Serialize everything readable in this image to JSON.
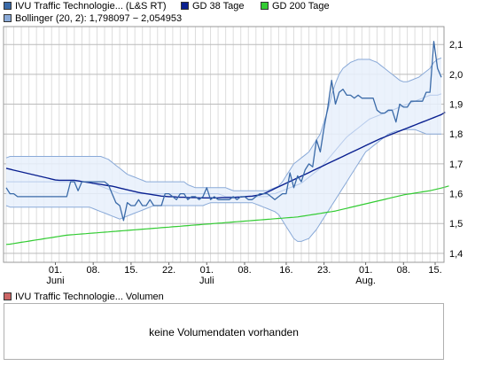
{
  "legend": {
    "price_label": "IVU Traffic Technologie... (L&S RT)",
    "gd38_label": "GD 38 Tage",
    "gd200_label": "GD 200 Tage",
    "bollinger_label": "Bollinger (20, 2): 1,798097 − 2,054953",
    "volume_label": "IVU Traffic Technologie... Volumen"
  },
  "volume": {
    "message": "keine Volumendaten vorhanden"
  },
  "colors": {
    "price": "#3a6aa8",
    "gd38": "#0a2090",
    "gd200": "#33cc33",
    "bollinger_fill": "#e8f0fb",
    "bollinger_line": "#8aaad8",
    "bollinger_mid": "#b8ccec",
    "volume_swatch": "#cc6666",
    "grid": "#cccccc"
  },
  "chart_data": {
    "type": "line",
    "x_tick_labels": [
      "01.",
      "08.",
      "15.",
      "22.",
      "01.",
      "08.",
      "16.",
      "23.",
      "01.",
      "08.",
      "15."
    ],
    "month_labels": [
      "Juni",
      "Juli",
      "Aug."
    ],
    "y_tick_labels": [
      "1,4",
      "1,5",
      "1,6",
      "1,7",
      "1,8",
      "1,9",
      "2,0",
      "2,1"
    ],
    "ylim": [
      1.37,
      2.16
    ],
    "grid": true,
    "legend_position": "top",
    "series": [
      {
        "name": "IVU Traffic Technologie... (L&S RT)",
        "values": [
          1.62,
          1.6,
          1.6,
          1.59,
          1.59,
          1.59,
          1.59,
          1.59,
          1.59,
          1.59,
          1.59,
          1.59,
          1.59,
          1.59,
          1.59,
          1.59,
          1.59,
          1.64,
          1.64,
          1.61,
          1.64,
          1.64,
          1.64,
          1.64,
          1.64,
          1.64,
          1.64,
          1.63,
          1.6,
          1.57,
          1.56,
          1.51,
          1.57,
          1.56,
          1.56,
          1.58,
          1.56,
          1.56,
          1.58,
          1.56,
          1.56,
          1.56,
          1.6,
          1.6,
          1.59,
          1.58,
          1.6,
          1.6,
          1.58,
          1.59,
          1.59,
          1.58,
          1.59,
          1.62,
          1.58,
          1.59,
          1.58,
          1.58,
          1.58,
          1.58,
          1.59,
          1.58,
          1.59,
          1.59,
          1.58,
          1.58,
          1.59,
          1.6,
          1.6,
          1.6,
          1.59,
          1.58,
          1.59,
          1.6,
          1.6,
          1.67,
          1.62,
          1.66,
          1.64,
          1.68,
          1.7,
          1.69,
          1.78,
          1.74,
          1.82,
          1.89,
          1.98,
          1.9,
          1.94,
          1.95,
          1.93,
          1.93,
          1.92,
          1.93,
          1.92,
          1.92,
          1.92,
          1.92,
          1.88,
          1.87,
          1.87,
          1.88,
          1.88,
          1.84,
          1.9,
          1.89,
          1.89,
          1.91,
          1.91,
          1.91,
          1.91,
          1.94,
          1.94,
          2.11,
          2.02,
          1.99
        ]
      },
      {
        "name": "GD 38 Tage",
        "values": [
          1.685,
          1.682,
          1.679,
          1.676,
          1.673,
          1.67,
          1.667,
          1.664,
          1.661,
          1.658,
          1.655,
          1.652,
          1.649,
          1.646,
          1.645,
          1.645,
          1.645,
          1.645,
          1.645,
          1.643,
          1.641,
          1.639,
          1.637,
          1.635,
          1.633,
          1.631,
          1.629,
          1.627,
          1.625,
          1.622,
          1.619,
          1.616,
          1.613,
          1.61,
          1.607,
          1.604,
          1.602,
          1.6,
          1.598,
          1.596,
          1.594,
          1.592,
          1.591,
          1.59,
          1.59,
          1.589,
          1.588,
          1.588,
          1.587,
          1.587,
          1.587,
          1.586,
          1.586,
          1.586,
          1.586,
          1.586,
          1.586,
          1.587,
          1.587,
          1.587,
          1.587,
          1.588,
          1.589,
          1.59,
          1.591,
          1.592,
          1.594,
          1.596,
          1.6,
          1.605,
          1.611,
          1.617,
          1.623,
          1.629,
          1.635,
          1.641,
          1.647,
          1.653,
          1.659,
          1.665,
          1.671,
          1.677,
          1.683,
          1.689,
          1.695,
          1.701,
          1.707,
          1.713,
          1.719,
          1.725,
          1.731,
          1.737,
          1.743,
          1.749,
          1.755,
          1.761,
          1.767,
          1.773,
          1.779,
          1.785,
          1.79,
          1.795,
          1.8,
          1.805,
          1.81,
          1.815,
          1.82,
          1.825,
          1.83,
          1.835,
          1.84,
          1.845,
          1.85,
          1.855,
          1.86,
          1.865,
          1.873
        ]
      },
      {
        "name": "GD 200 Tage",
        "values": [
          1.43,
          1.431,
          1.433,
          1.435,
          1.437,
          1.439,
          1.441,
          1.443,
          1.445,
          1.447,
          1.449,
          1.451,
          1.453,
          1.455,
          1.457,
          1.459,
          1.461,
          1.462,
          1.463,
          1.464,
          1.465,
          1.466,
          1.467,
          1.468,
          1.469,
          1.47,
          1.471,
          1.472,
          1.473,
          1.474,
          1.475,
          1.476,
          1.477,
          1.478,
          1.479,
          1.48,
          1.481,
          1.482,
          1.483,
          1.484,
          1.485,
          1.486,
          1.487,
          1.488,
          1.489,
          1.49,
          1.491,
          1.492,
          1.493,
          1.494,
          1.495,
          1.496,
          1.497,
          1.498,
          1.499,
          1.5,
          1.501,
          1.502,
          1.503,
          1.504,
          1.505,
          1.506,
          1.507,
          1.508,
          1.509,
          1.51,
          1.511,
          1.512,
          1.513,
          1.514,
          1.515,
          1.516,
          1.517,
          1.518,
          1.519,
          1.52,
          1.521,
          1.522,
          1.524,
          1.526,
          1.528,
          1.53,
          1.532,
          1.534,
          1.536,
          1.538,
          1.54,
          1.542,
          1.545,
          1.548,
          1.551,
          1.554,
          1.557,
          1.56,
          1.563,
          1.566,
          1.569,
          1.572,
          1.575,
          1.578,
          1.581,
          1.584,
          1.587,
          1.59,
          1.593,
          1.596,
          1.598,
          1.6,
          1.602,
          1.604,
          1.606,
          1.608,
          1.61,
          1.613,
          1.616,
          1.619,
          1.622,
          1.626
        ]
      },
      {
        "name": "Bollinger (20, 2)",
        "upper": [
          1.72,
          1.725,
          1.725,
          1.725,
          1.725,
          1.725,
          1.725,
          1.725,
          1.725,
          1.725,
          1.725,
          1.725,
          1.725,
          1.725,
          1.725,
          1.725,
          1.725,
          1.725,
          1.725,
          1.725,
          1.725,
          1.725,
          1.725,
          1.725,
          1.725,
          1.725,
          1.72,
          1.715,
          1.705,
          1.695,
          1.685,
          1.675,
          1.665,
          1.66,
          1.655,
          1.65,
          1.645,
          1.64,
          1.64,
          1.64,
          1.64,
          1.64,
          1.64,
          1.64,
          1.64,
          1.64,
          1.64,
          1.64,
          1.63,
          1.625,
          1.62,
          1.62,
          1.62,
          1.62,
          1.62,
          1.62,
          1.62,
          1.62,
          1.62,
          1.615,
          1.61,
          1.61,
          1.61,
          1.61,
          1.61,
          1.61,
          1.61,
          1.61,
          1.61,
          1.61,
          1.615,
          1.62,
          1.625,
          1.64,
          1.66,
          1.68,
          1.7,
          1.71,
          1.72,
          1.73,
          1.74,
          1.76,
          1.78,
          1.8,
          1.84,
          1.88,
          1.93,
          1.97,
          2.0,
          2.02,
          2.03,
          2.04,
          2.045,
          2.05,
          2.05,
          2.05,
          2.05,
          2.045,
          2.04,
          2.03,
          2.02,
          2.01,
          2.0,
          1.99,
          1.98,
          1.975,
          1.975,
          1.98,
          1.985,
          1.99,
          2.0,
          2.01,
          2.02,
          2.04,
          2.05,
          2.055
        ],
        "middle": [
          1.64,
          1.64,
          1.64,
          1.64,
          1.64,
          1.64,
          1.64,
          1.64,
          1.64,
          1.64,
          1.64,
          1.64,
          1.64,
          1.64,
          1.64,
          1.64,
          1.64,
          1.64,
          1.64,
          1.64,
          1.64,
          1.64,
          1.64,
          1.635,
          1.63,
          1.625,
          1.62,
          1.615,
          1.61,
          1.605,
          1.6,
          1.6,
          1.6,
          1.6,
          1.6,
          1.6,
          1.6,
          1.6,
          1.6,
          1.6,
          1.6,
          1.6,
          1.6,
          1.6,
          1.6,
          1.6,
          1.6,
          1.6,
          1.6,
          1.6,
          1.6,
          1.6,
          1.6,
          1.6,
          1.6,
          1.6,
          1.6,
          1.595,
          1.59,
          1.59,
          1.59,
          1.59,
          1.59,
          1.59,
          1.59,
          1.59,
          1.59,
          1.59,
          1.59,
          1.59,
          1.6,
          1.6,
          1.605,
          1.61,
          1.615,
          1.62,
          1.625,
          1.63,
          1.635,
          1.645,
          1.655,
          1.665,
          1.675,
          1.685,
          1.7,
          1.715,
          1.73,
          1.745,
          1.76,
          1.775,
          1.79,
          1.8,
          1.81,
          1.82,
          1.83,
          1.84,
          1.85,
          1.855,
          1.86,
          1.865,
          1.87,
          1.875,
          1.88,
          1.885,
          1.89,
          1.895,
          1.9,
          1.905,
          1.91,
          1.915,
          1.92,
          1.925,
          1.93,
          1.93,
          1.93,
          1.935
        ],
        "lower": [
          1.56,
          1.555,
          1.555,
          1.555,
          1.555,
          1.555,
          1.555,
          1.555,
          1.555,
          1.555,
          1.555,
          1.555,
          1.555,
          1.555,
          1.555,
          1.555,
          1.555,
          1.555,
          1.555,
          1.555,
          1.555,
          1.555,
          1.555,
          1.55,
          1.545,
          1.54,
          1.535,
          1.53,
          1.525,
          1.52,
          1.515,
          1.52,
          1.525,
          1.53,
          1.535,
          1.54,
          1.545,
          1.55,
          1.555,
          1.56,
          1.56,
          1.56,
          1.56,
          1.56,
          1.56,
          1.56,
          1.56,
          1.56,
          1.56,
          1.56,
          1.56,
          1.56,
          1.56,
          1.565,
          1.57,
          1.57,
          1.57,
          1.57,
          1.57,
          1.57,
          1.57,
          1.57,
          1.57,
          1.57,
          1.57,
          1.57,
          1.565,
          1.56,
          1.555,
          1.55,
          1.545,
          1.54,
          1.53,
          1.51,
          1.49,
          1.47,
          1.45,
          1.44,
          1.44,
          1.445,
          1.45,
          1.465,
          1.48,
          1.5,
          1.52,
          1.54,
          1.56,
          1.58,
          1.6,
          1.62,
          1.64,
          1.66,
          1.68,
          1.7,
          1.72,
          1.74,
          1.75,
          1.76,
          1.77,
          1.78,
          1.79,
          1.8,
          1.805,
          1.81,
          1.81,
          1.815,
          1.815,
          1.815,
          1.815,
          1.81,
          1.805,
          1.8,
          1.8,
          1.8,
          1.8,
          1.8
        ]
      }
    ]
  }
}
